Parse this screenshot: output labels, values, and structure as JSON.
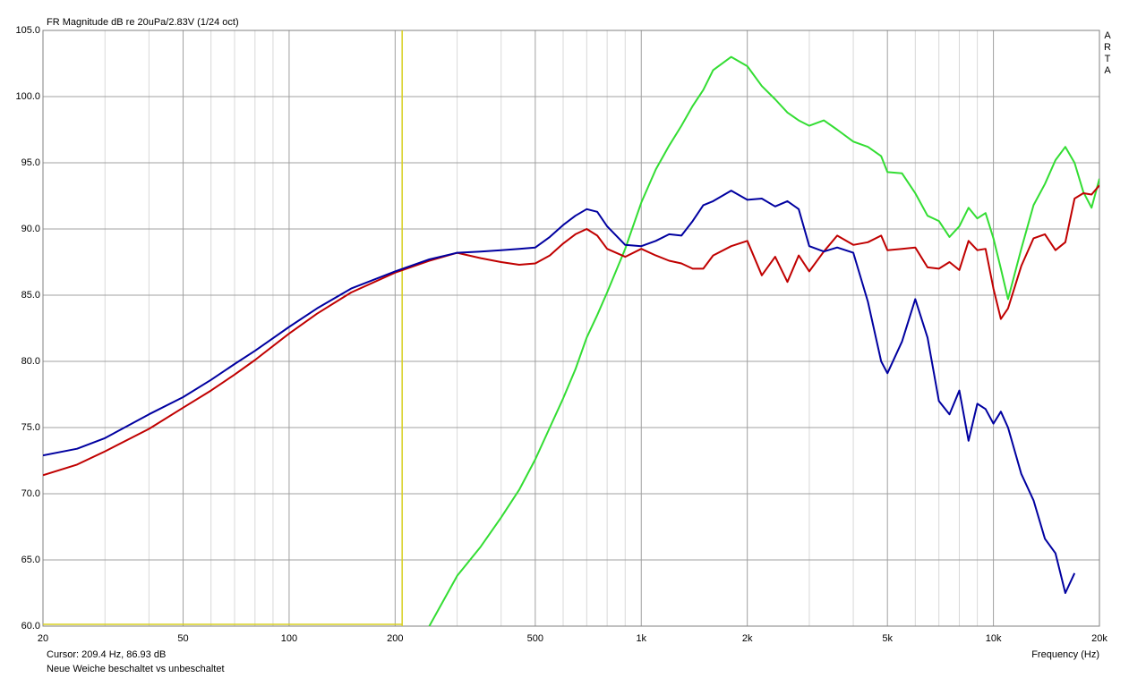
{
  "chart_data": {
    "type": "line",
    "title": "FR Magnitude dB re 20uPa/2.83V (1/24 oct)",
    "x_label": "Frequency (Hz)",
    "watermark": [
      "A",
      "R",
      "T",
      "A"
    ],
    "cursor": {
      "x": 209.4,
      "label": "Cursor: 209.4 Hz, 86.93 dB",
      "color": "#d8d020"
    },
    "footnote": "Neue Weiche beschaltet vs unbeschaltet",
    "x_scale": "log",
    "grid": true,
    "xlim": [
      20,
      20000
    ],
    "ylim": [
      60,
      105
    ],
    "xticks": [
      20,
      50,
      100,
      200,
      500,
      {
        "value": 1000,
        "label": "1k"
      },
      {
        "value": 2000,
        "label": "2k"
      },
      {
        "value": 5000,
        "label": "5k"
      },
      {
        "value": 10000,
        "label": "10k"
      },
      {
        "value": 20000,
        "label": "20k"
      }
    ],
    "x_minor_grid": [
      30,
      40,
      60,
      70,
      80,
      90,
      300,
      400,
      600,
      700,
      800,
      900,
      3000,
      4000,
      6000,
      7000,
      8000,
      9000
    ],
    "yticks": [
      {
        "value": 60,
        "label": "60.0"
      },
      {
        "value": 65,
        "label": "65.0"
      },
      {
        "value": 70,
        "label": "70.0"
      },
      {
        "value": 75,
        "label": "75.0"
      },
      {
        "value": 80,
        "label": "80.0"
      },
      {
        "value": 85,
        "label": "85.0"
      },
      {
        "value": 90,
        "label": "90.0"
      },
      {
        "value": 95,
        "label": "95.0"
      },
      {
        "value": 100,
        "label": "100.0"
      },
      {
        "value": 105,
        "label": "105.0"
      }
    ],
    "x": [
      20,
      25,
      30,
      40,
      50,
      60,
      70,
      80,
      100,
      120,
      150,
      200,
      250,
      300,
      350,
      400,
      450,
      500,
      550,
      600,
      650,
      700,
      750,
      800,
      900,
      1000,
      1100,
      1200,
      1300,
      1400,
      1500,
      1600,
      1800,
      2000,
      2200,
      2400,
      2600,
      2800,
      3000,
      3300,
      3600,
      4000,
      4400,
      4800,
      5000,
      5500,
      6000,
      6500,
      7000,
      7500,
      8000,
      8500,
      9000,
      9500,
      10000,
      10500,
      11000,
      12000,
      13000,
      14000,
      15000,
      16000,
      17000,
      18000,
      19000,
      20000
    ],
    "series": [
      {
        "color": "#33dd33",
        "values": [
          null,
          null,
          null,
          null,
          null,
          null,
          null,
          null,
          null,
          null,
          null,
          null,
          60.0,
          63.8,
          66.0,
          68.2,
          70.3,
          72.6,
          75.0,
          77.2,
          79.4,
          81.8,
          83.5,
          85.2,
          88.5,
          92.0,
          94.5,
          96.3,
          97.8,
          99.3,
          100.5,
          102.0,
          103.0,
          102.3,
          100.8,
          99.8,
          98.8,
          98.2,
          97.8,
          98.2,
          97.5,
          96.6,
          96.2,
          95.5,
          94.3,
          94.2,
          92.7,
          91.0,
          90.6,
          89.4,
          90.2,
          91.6,
          90.8,
          91.2,
          89.3,
          87.0,
          84.7,
          88.5,
          91.8,
          93.4,
          95.2,
          96.2,
          95.0,
          92.8,
          91.6,
          93.8
        ]
      },
      {
        "color": "#c00000",
        "values": [
          71.4,
          72.2,
          73.2,
          74.9,
          76.5,
          77.8,
          79.0,
          80.1,
          82.1,
          83.6,
          85.2,
          86.7,
          87.6,
          88.2,
          87.8,
          87.5,
          87.3,
          87.4,
          88.0,
          88.9,
          89.6,
          90.0,
          89.5,
          88.5,
          87.9,
          88.5,
          88.0,
          87.6,
          87.4,
          87.0,
          87.0,
          88.0,
          88.7,
          89.1,
          86.5,
          87.9,
          86.0,
          88.0,
          86.8,
          88.3,
          89.5,
          88.8,
          89.0,
          89.5,
          88.4,
          88.5,
          88.6,
          87.1,
          87.0,
          87.5,
          86.9,
          89.1,
          88.4,
          88.5,
          85.5,
          83.2,
          84.0,
          87.2,
          89.3,
          89.6,
          88.4,
          89.0,
          92.3,
          92.7,
          92.6,
          93.3
        ]
      },
      {
        "color": "#0000a0",
        "values": [
          72.9,
          73.4,
          74.2,
          76.0,
          77.3,
          78.6,
          79.8,
          80.8,
          82.6,
          84.0,
          85.5,
          86.8,
          87.7,
          88.2,
          88.3,
          88.4,
          88.5,
          88.6,
          89.4,
          90.3,
          91.0,
          91.5,
          91.3,
          90.2,
          88.8,
          88.7,
          89.1,
          89.6,
          89.5,
          90.6,
          91.8,
          92.1,
          92.9,
          92.2,
          92.3,
          91.7,
          92.1,
          91.5,
          88.7,
          88.3,
          88.6,
          88.2,
          84.5,
          80.0,
          79.1,
          81.5,
          84.7,
          81.8,
          77.0,
          76.0,
          77.8,
          74.0,
          76.8,
          76.4,
          75.3,
          76.2,
          75.0,
          71.5,
          69.5,
          66.6,
          65.5,
          62.5,
          64.0,
          null,
          null,
          null
        ]
      }
    ]
  }
}
